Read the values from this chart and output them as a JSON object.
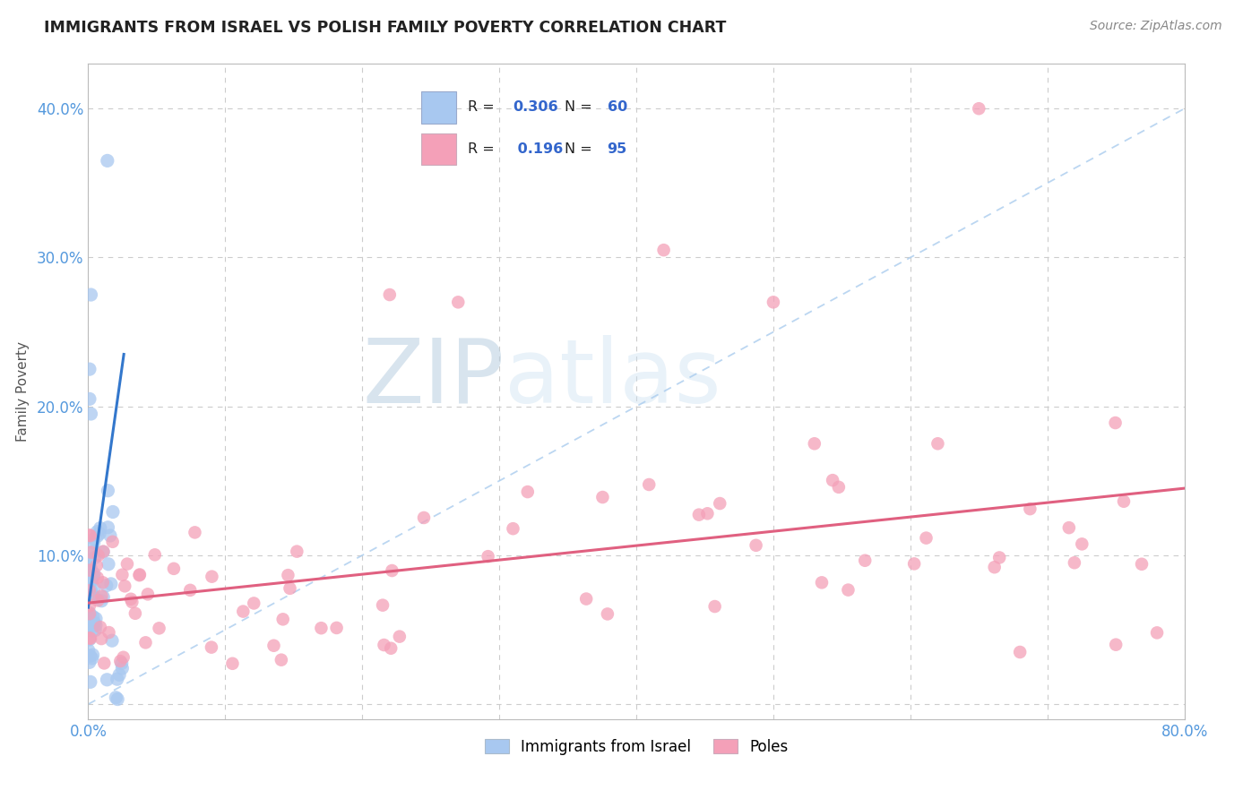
{
  "title": "IMMIGRANTS FROM ISRAEL VS POLISH FAMILY POVERTY CORRELATION CHART",
  "source": "Source: ZipAtlas.com",
  "ylabel": "Family Poverty",
  "xlim": [
    0,
    0.8
  ],
  "ylim": [
    -0.01,
    0.43
  ],
  "ytick_vals": [
    0.0,
    0.1,
    0.2,
    0.3,
    0.4
  ],
  "ytick_labels": [
    "",
    "10.0%",
    "20.0%",
    "30.0%",
    "40.0%"
  ],
  "xtick_vals": [
    0.0,
    0.1,
    0.2,
    0.3,
    0.4,
    0.5,
    0.6,
    0.7,
    0.8
  ],
  "xtick_labels": [
    "0.0%",
    "",
    "",
    "",
    "",
    "",
    "",
    "",
    "80.0%"
  ],
  "legend_R1": "0.306",
  "legend_N1": "60",
  "legend_R2": "0.196",
  "legend_N2": "95",
  "series1_color": "#a8c8f0",
  "series2_color": "#f4a0b8",
  "line1_color": "#3377cc",
  "line2_color": "#e06080",
  "ref_line_color": "#aaccee",
  "background_color": "#ffffff",
  "grid_color": "#cccccc",
  "title_color": "#222222",
  "axis_label_color": "#5599dd",
  "legend_text_color": "#222222",
  "legend_value_color": "#3366cc",
  "watermark_zip_color": "#d0e4f0",
  "watermark_atlas_color": "#c8d8ec"
}
